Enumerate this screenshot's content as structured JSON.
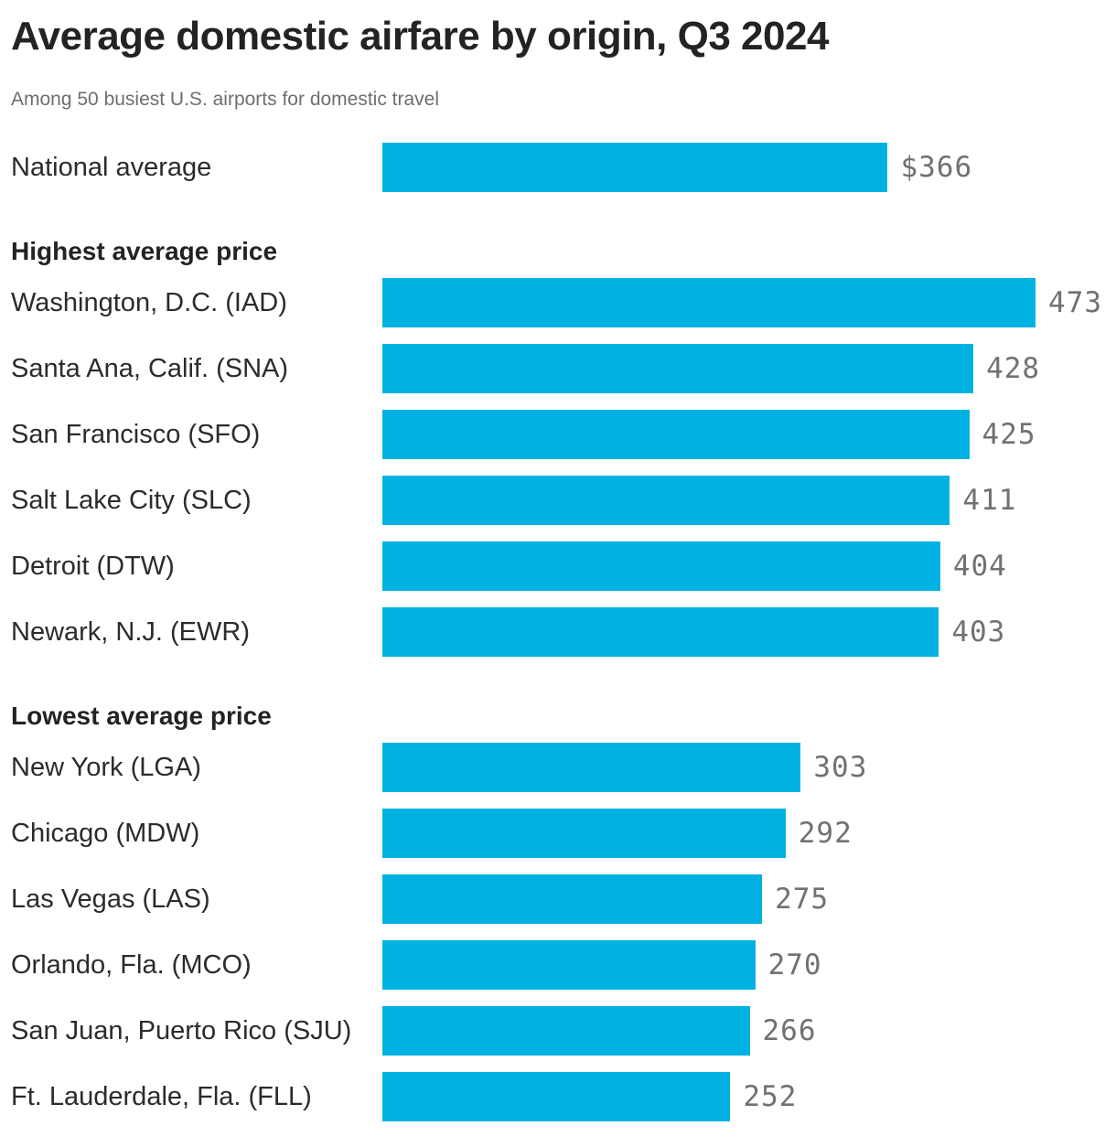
{
  "chart_data": {
    "type": "bar",
    "title": "Average domestic airfare by origin, Q3 2024",
    "subtitle": "Among 50 busiest U.S. airports for domestic travel",
    "orientation": "horizontal",
    "xlim": [
      0,
      473
    ],
    "unit": "USD",
    "bar_color": "#00b2e2",
    "value_label_color": "#717171",
    "grid": false,
    "legend": false,
    "sections": [
      {
        "header": "",
        "rows": [
          {
            "label": "National average",
            "value": 366,
            "value_label": "$366"
          }
        ]
      },
      {
        "header": "Highest average price",
        "rows": [
          {
            "label": "Washington, D.C. (IAD)",
            "value": 473,
            "value_label": "473"
          },
          {
            "label": "Santa Ana, Calif. (SNA)",
            "value": 428,
            "value_label": "428"
          },
          {
            "label": "San Francisco (SFO)",
            "value": 425,
            "value_label": "425"
          },
          {
            "label": "Salt Lake City (SLC)",
            "value": 411,
            "value_label": "411"
          },
          {
            "label": "Detroit (DTW)",
            "value": 404,
            "value_label": "404"
          },
          {
            "label": "Newark, N.J. (EWR)",
            "value": 403,
            "value_label": "403"
          }
        ]
      },
      {
        "header": "Lowest average price",
        "rows": [
          {
            "label": "New York (LGA)",
            "value": 303,
            "value_label": "303"
          },
          {
            "label": "Chicago (MDW)",
            "value": 292,
            "value_label": "292"
          },
          {
            "label": "Las Vegas (LAS)",
            "value": 275,
            "value_label": "275"
          },
          {
            "label": "Orlando, Fla. (MCO)",
            "value": 270,
            "value_label": "270"
          },
          {
            "label": "San Juan, Puerto Rico (SJU)",
            "value": 266,
            "value_label": "266"
          },
          {
            "label": "Ft. Lauderdale, Fla. (FLL)",
            "value": 252,
            "value_label": "252"
          }
        ]
      }
    ]
  }
}
